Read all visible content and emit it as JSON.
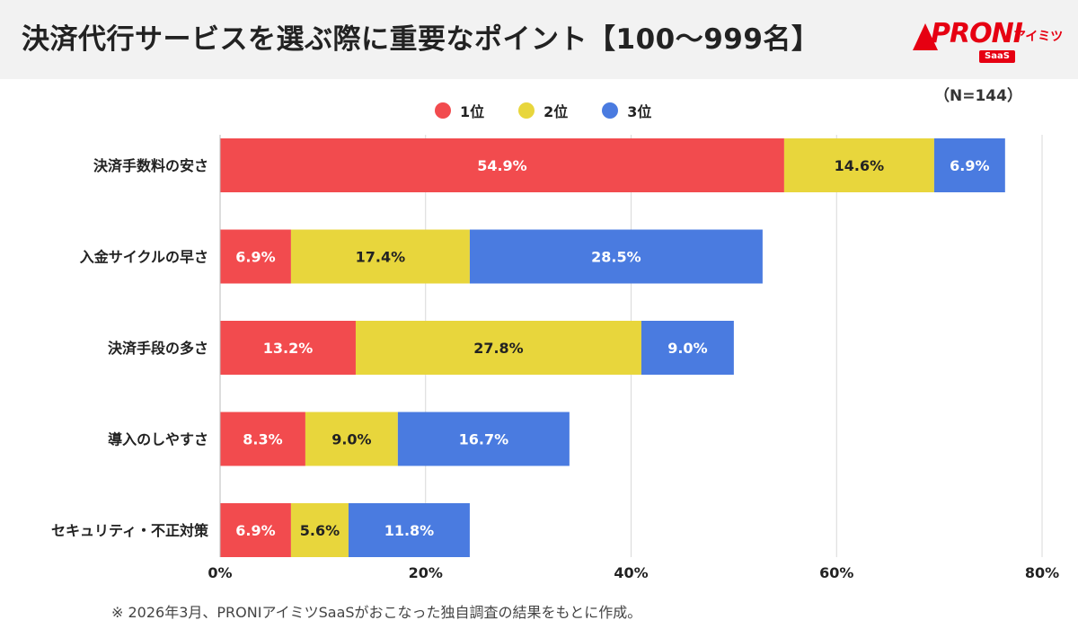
{
  "header": {
    "title": "決済代行サービスを選ぶ際に重要なポイント【100〜999名】",
    "logo": {
      "main": "PRONI",
      "sub": "アイミツ",
      "badge": "SaaS"
    }
  },
  "sample_note": "（N=144）",
  "footnote": "※ 2026年3月、PRONIアイミツSaaSがおこなった独自調査の結果をもとに作成。",
  "colors": {
    "rank1": "#f24b4e",
    "rank2": "#e8d63c",
    "rank3": "#4a7be0",
    "header_bg": "#f2f2f2",
    "brand": "#e60012"
  },
  "chart_data": {
    "type": "bar",
    "orientation": "horizontal",
    "stacked": true,
    "categories": [
      "決済手数料の安さ",
      "入金サイクルの早さ",
      "決済手段の多さ",
      "導入のしやすさ",
      "セキュリティ・不正対策"
    ],
    "series": [
      {
        "name": "1位",
        "values": [
          54.9,
          6.9,
          13.2,
          8.3,
          6.9
        ],
        "labels": [
          "54.9%",
          "6.9%",
          "13.2%",
          "8.3%",
          "6.9%"
        ]
      },
      {
        "name": "2位",
        "values": [
          14.6,
          17.4,
          27.8,
          9.0,
          5.6
        ],
        "labels": [
          "14.6%",
          "17.4%",
          "27.8%",
          "9.0%",
          "5.6%"
        ]
      },
      {
        "name": "3位",
        "values": [
          6.9,
          28.5,
          9.0,
          16.7,
          11.8
        ],
        "labels": [
          "6.9%",
          "28.5%",
          "9.0%",
          "16.7%",
          "11.8%"
        ]
      }
    ],
    "xlim": [
      0,
      80
    ],
    "x_ticks": [
      0,
      20,
      40,
      60,
      80
    ],
    "x_tick_labels": [
      "0%",
      "20%",
      "40%",
      "60%",
      "80%"
    ],
    "grid": "vertical",
    "legend_position": "top"
  }
}
